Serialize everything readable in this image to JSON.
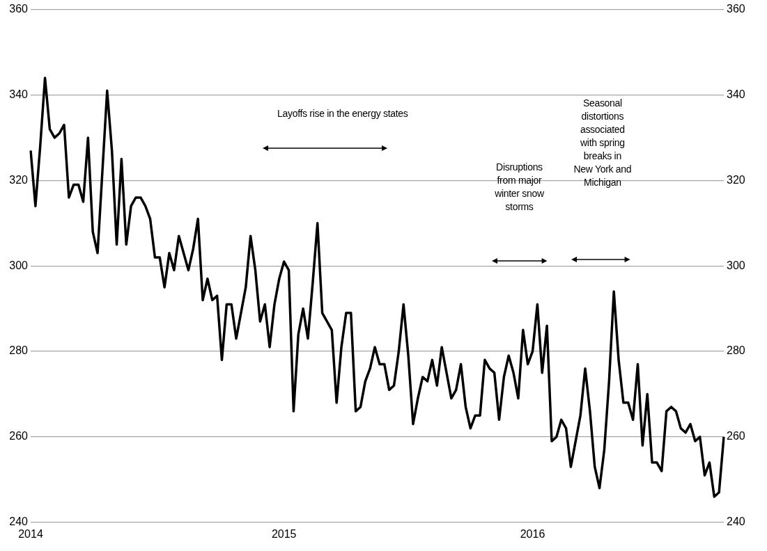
{
  "chart_data": {
    "type": "line",
    "categories": [
      "2014",
      null,
      null,
      null,
      null,
      null,
      null,
      null,
      null,
      null,
      null,
      null,
      null,
      null,
      null,
      null,
      null,
      null,
      null,
      null,
      null,
      null,
      null,
      null,
      null,
      null,
      null,
      null,
      null,
      null,
      null,
      null,
      null,
      null,
      null,
      null,
      null,
      null,
      null,
      null,
      null,
      null,
      null,
      null,
      null,
      null,
      null,
      null,
      null,
      null,
      null,
      null,
      null,
      "2015",
      null,
      null,
      null,
      null,
      null,
      null,
      null,
      null,
      null,
      null,
      null,
      null,
      null,
      null,
      null,
      null,
      null,
      null,
      null,
      null,
      null,
      null,
      null,
      null,
      null,
      null,
      null,
      null,
      null,
      null,
      null,
      null,
      null,
      null,
      null,
      null,
      null,
      null,
      null,
      null,
      null,
      null,
      null,
      null,
      null,
      null,
      null,
      null,
      null,
      null,
      null,
      "2016",
      null,
      null,
      null,
      null,
      null,
      null,
      null,
      null,
      null,
      null,
      null,
      null,
      null,
      null,
      null,
      null,
      null,
      null,
      null,
      null,
      null,
      null,
      null,
      null,
      null,
      null,
      null,
      null,
      null,
      null,
      null,
      null,
      null,
      null,
      null,
      null,
      null,
      null,
      null,
      null
    ],
    "series": [
      {
        "color": "#000000",
        "values": [
          327,
          314,
          328,
          344,
          332,
          330,
          331,
          333,
          316,
          319,
          319,
          315,
          330,
          308,
          303,
          322,
          341,
          327,
          305,
          325,
          305,
          314,
          316,
          316,
          314,
          311,
          302,
          302,
          295,
          303,
          299,
          307,
          303,
          299,
          304,
          311,
          292,
          297,
          292,
          293,
          278,
          291,
          291,
          283,
          289,
          295,
          307,
          299,
          287,
          291,
          281,
          291,
          297,
          301,
          299,
          266,
          284,
          290,
          283,
          296,
          310,
          289,
          287,
          285,
          268,
          281,
          289,
          289,
          266,
          267,
          273,
          276,
          281,
          277,
          277,
          271,
          272,
          280,
          291,
          279,
          263,
          269,
          274,
          273,
          278,
          272,
          281,
          275,
          269,
          271,
          277,
          267,
          262,
          265,
          265,
          278,
          276,
          275,
          264,
          274,
          279,
          275,
          269,
          285,
          277,
          280,
          291,
          275,
          286,
          259,
          260,
          264,
          262,
          253,
          259,
          265,
          276,
          266,
          253,
          248,
          257,
          273,
          294,
          278,
          268,
          268,
          264,
          277,
          258,
          270,
          254,
          254,
          252,
          266,
          267,
          266,
          262,
          261,
          263,
          259,
          260,
          251,
          254,
          246,
          247,
          260
        ]
      }
    ],
    "ylim": [
      240,
      360
    ],
    "yticks": [
      240,
      260,
      280,
      300,
      320,
      340,
      360
    ],
    "y2lim": [
      240,
      360
    ],
    "y2ticks": [
      240,
      260,
      280,
      300,
      320,
      340,
      360
    ],
    "grid": "y",
    "marker": "none",
    "line_style": "solid",
    "annotations": [
      "Layoffs rise in the energy states",
      "Disruptions from major winter snow storms",
      "Seasonal distortions associated with spring breaks in New York and Michigan"
    ]
  }
}
